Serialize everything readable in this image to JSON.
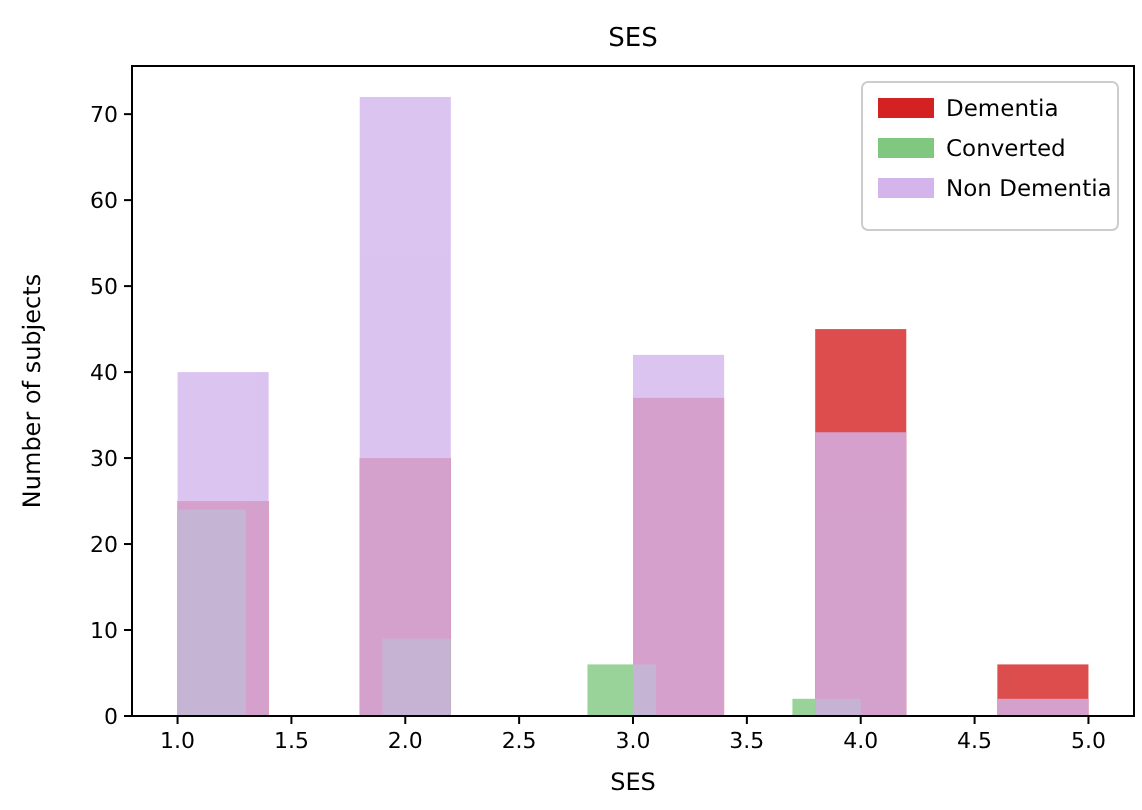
{
  "chart_data": {
    "type": "histogram",
    "title": "SES",
    "xlabel": "SES",
    "ylabel": "Number of subjects",
    "series": [
      {
        "name": "Dementia",
        "color": "#d42121",
        "values": [
          25,
          0,
          30,
          0,
          0,
          37,
          0,
          45,
          0,
          6
        ]
      },
      {
        "name": "Converted",
        "color": "#80c880",
        "bins": [
          1.0,
          1.3,
          1.6,
          1.9,
          2.2,
          2.5,
          2.8,
          3.1,
          3.4,
          3.7,
          4.0
        ],
        "values": [
          24,
          0,
          0,
          9,
          0,
          0,
          6,
          0,
          0,
          2
        ]
      },
      {
        "name": "Non Dementia",
        "color": "#d3b5ec",
        "values": [
          40,
          0,
          72,
          0,
          0,
          42,
          0,
          33,
          0,
          2
        ]
      }
    ],
    "bins": [
      1.0,
      1.4,
      1.8,
      2.2,
      2.6,
      3.0,
      3.4,
      3.8,
      4.2,
      4.6,
      5.0
    ],
    "xlim": [
      0.8,
      5.2
    ],
    "xticks": [
      {
        "value": 1,
        "label": "1.0"
      },
      1.5,
      {
        "value": 2,
        "label": "2.0"
      },
      2.5,
      {
        "value": 3,
        "label": "3.0"
      },
      3.5,
      {
        "value": 4,
        "label": "4.0"
      },
      4.5,
      {
        "value": 5,
        "label": "5.0"
      }
    ],
    "ylim": [
      0,
      75.6
    ],
    "yticks": [
      0,
      10,
      20,
      30,
      40,
      50,
      60,
      70
    ],
    "legend": "top right",
    "grid": false
  }
}
